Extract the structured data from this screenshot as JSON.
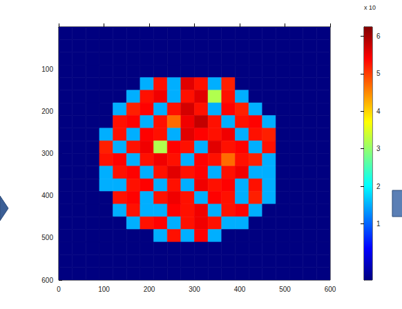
{
  "chart_data": {
    "type": "heatmap",
    "x": [
      15,
      45,
      75,
      105,
      135,
      165,
      195,
      225,
      255,
      285,
      315,
      345,
      375,
      405,
      435,
      465,
      495,
      525,
      555,
      585
    ],
    "y": [
      15,
      45,
      75,
      105,
      135,
      165,
      195,
      225,
      255,
      285,
      315,
      345,
      375,
      405,
      435,
      465,
      495,
      525,
      555,
      585
    ],
    "cells": [
      [
        -0.5,
        -0.5,
        -0.5,
        -0.5,
        -0.5,
        -0.5,
        -0.5,
        -0.5,
        -0.5,
        -0.5,
        -0.5,
        -0.5,
        -0.5,
        -0.5,
        -0.5,
        -0.5,
        -0.5,
        -0.5,
        -0.5,
        -0.5
      ],
      [
        -0.5,
        -0.5,
        -0.5,
        -0.5,
        -0.5,
        -0.5,
        -0.5,
        -0.5,
        -0.5,
        -0.5,
        -0.5,
        -0.5,
        -0.5,
        -0.5,
        -0.5,
        -0.5,
        -0.5,
        -0.5,
        -0.5,
        -0.5
      ],
      [
        -0.5,
        -0.5,
        -0.5,
        -0.5,
        -0.5,
        -0.5,
        -0.5,
        -0.5,
        -0.5,
        -0.5,
        -0.5,
        -0.5,
        -0.5,
        -0.5,
        -0.5,
        -0.5,
        -0.5,
        -0.5,
        -0.5,
        -0.5
      ],
      [
        -0.5,
        -0.5,
        -0.5,
        -0.5,
        -0.5,
        -0.5,
        -0.5,
        -0.5,
        -0.5,
        -0.5,
        -0.5,
        -0.5,
        -0.5,
        -0.5,
        -0.5,
        -0.5,
        -0.5,
        -0.5,
        -0.5,
        -0.5
      ],
      [
        -0.5,
        -0.5,
        -0.5,
        -0.5,
        -0.5,
        -0.5,
        1.5,
        5.3,
        1.5,
        5.6,
        5.3,
        1.5,
        5.2,
        -0.5,
        -0.5,
        -0.5,
        -0.5,
        -0.5,
        -0.5,
        -0.5
      ],
      [
        -0.5,
        -0.5,
        -0.5,
        -0.5,
        -0.5,
        1.5,
        5.3,
        5.5,
        1.5,
        5.3,
        5.6,
        3.2,
        5.3,
        1.5,
        -0.5,
        -0.5,
        -0.5,
        -0.5,
        -0.5,
        -0.5
      ],
      [
        -0.5,
        -0.5,
        -0.5,
        -0.5,
        1.5,
        5.2,
        5.4,
        1.5,
        5.3,
        5.7,
        5.3,
        1.5,
        5.4,
        5.2,
        1.5,
        -0.5,
        -0.5,
        -0.5,
        -0.5,
        -0.5
      ],
      [
        -0.5,
        -0.5,
        -0.5,
        -0.5,
        5.3,
        5.4,
        1.5,
        5.3,
        4.7,
        5.5,
        5.8,
        5.3,
        1.5,
        5.3,
        5.4,
        1.5,
        -0.5,
        -0.5,
        -0.5,
        -0.5
      ],
      [
        -0.5,
        -0.5,
        -0.5,
        1.5,
        5.3,
        1.5,
        5.4,
        5.3,
        1.5,
        5.6,
        5.4,
        5.3,
        5.5,
        1.5,
        5.3,
        5.2,
        -0.5,
        -0.5,
        -0.5,
        -0.5
      ],
      [
        -0.5,
        -0.5,
        -0.5,
        5.2,
        1.5,
        5.3,
        5.5,
        3.2,
        5.4,
        5.3,
        1.5,
        5.6,
        5.3,
        5.4,
        1.5,
        5.3,
        -0.5,
        -0.5,
        -0.5,
        -0.5
      ],
      [
        -0.5,
        -0.5,
        -0.5,
        5.3,
        5.4,
        1.5,
        5.3,
        5.5,
        5.3,
        1.5,
        5.4,
        5.3,
        4.7,
        5.3,
        5.2,
        1.5,
        -0.5,
        -0.5,
        -0.5,
        -0.5
      ],
      [
        -0.5,
        -0.5,
        -0.5,
        1.5,
        5.3,
        5.4,
        1.5,
        5.3,
        5.6,
        5.3,
        5.4,
        1.5,
        5.3,
        5.5,
        1.5,
        1.5,
        -0.5,
        -0.5,
        -0.5,
        -0.5
      ],
      [
        -0.5,
        -0.5,
        -0.5,
        1.5,
        1.5,
        5.3,
        5.4,
        1.5,
        5.3,
        1.5,
        5.5,
        5.3,
        5.4,
        1.5,
        5.3,
        1.5,
        -0.5,
        -0.5,
        -0.5,
        -0.5
      ],
      [
        -0.5,
        -0.5,
        -0.5,
        -0.5,
        5.3,
        5.4,
        1.5,
        5.3,
        5.5,
        5.3,
        1.5,
        5.4,
        5.3,
        1.5,
        5.2,
        1.5,
        -0.5,
        -0.5,
        -0.5,
        -0.5
      ],
      [
        -0.5,
        -0.5,
        -0.5,
        -0.5,
        1.5,
        5.3,
        1.5,
        1.5,
        5.4,
        5.3,
        5.5,
        1.5,
        5.3,
        5.4,
        1.5,
        -0.5,
        -0.5,
        -0.5,
        -0.5,
        -0.5
      ],
      [
        -0.5,
        -0.5,
        -0.5,
        -0.5,
        -0.5,
        1.5,
        5.3,
        5.4,
        1.5,
        5.3,
        5.5,
        5.3,
        1.5,
        1.5,
        -0.5,
        -0.5,
        -0.5,
        -0.5,
        -0.5,
        -0.5
      ],
      [
        -0.5,
        -0.5,
        -0.5,
        -0.5,
        -0.5,
        -0.5,
        -0.5,
        1.5,
        5.3,
        1.5,
        5.4,
        1.5,
        -0.5,
        -0.5,
        -0.5,
        -0.5,
        -0.5,
        -0.5,
        -0.5,
        -0.5
      ],
      [
        -0.5,
        -0.5,
        -0.5,
        -0.5,
        -0.5,
        -0.5,
        -0.5,
        -0.5,
        -0.5,
        -0.5,
        -0.5,
        -0.5,
        -0.5,
        -0.5,
        -0.5,
        -0.5,
        -0.5,
        -0.5,
        -0.5,
        -0.5
      ],
      [
        -0.5,
        -0.5,
        -0.5,
        -0.5,
        -0.5,
        -0.5,
        -0.5,
        -0.5,
        -0.5,
        -0.5,
        -0.5,
        -0.5,
        -0.5,
        -0.5,
        -0.5,
        -0.5,
        -0.5,
        -0.5,
        -0.5,
        -0.5
      ],
      [
        -0.5,
        -0.5,
        -0.5,
        -0.5,
        -0.5,
        -0.5,
        -0.5,
        -0.5,
        -0.5,
        -0.5,
        -0.5,
        -0.5,
        -0.5,
        -0.5,
        -0.5,
        -0.5,
        -0.5,
        -0.5,
        -0.5,
        -0.5
      ]
    ],
    "xlim": [
      0,
      600
    ],
    "ylim": [
      600,
      0
    ],
    "xticks": [
      0,
      100,
      200,
      300,
      400,
      500,
      600
    ],
    "yticks": [
      100,
      200,
      300,
      400,
      500,
      600
    ],
    "grid": false,
    "colorbar": {
      "lim": [
        -0.5,
        6.25
      ],
      "ticks": [
        1,
        2,
        3,
        4,
        5,
        6
      ],
      "label": "x 10"
    }
  }
}
